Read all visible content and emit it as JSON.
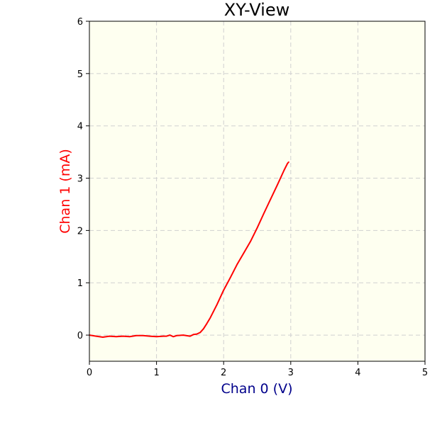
{
  "chart_data": {
    "type": "line",
    "title": "XY-View",
    "xlabel": "Chan 0 (V)",
    "ylabel": "Chan 1 (mA)",
    "xlim": [
      0,
      5
    ],
    "ylim": [
      -0.5,
      6
    ],
    "xticks": [
      "0",
      "1",
      "2",
      "3",
      "4",
      "5"
    ],
    "yticks": [
      "0",
      "1",
      "2",
      "3",
      "4",
      "5",
      "6"
    ],
    "grid": true,
    "legend": "none",
    "colors": {
      "background": "#fefff0",
      "line": "#ff0000",
      "xlabel": "#00008b",
      "ylabel": "#ff0000",
      "grid": "#d0d0d0"
    },
    "series": [
      {
        "x": [
          0.0,
          0.1,
          0.2,
          0.3,
          0.4,
          0.5,
          0.6,
          0.7,
          0.8,
          0.9,
          1.0,
          1.1,
          1.15,
          1.2,
          1.25,
          1.3,
          1.4,
          1.5,
          1.55,
          1.6,
          1.65,
          1.7,
          1.75,
          1.8,
          1.9,
          2.0,
          2.1,
          2.2,
          2.3,
          2.4,
          2.5,
          2.6,
          2.7,
          2.8,
          2.9,
          2.95,
          2.97
        ],
        "y": [
          0.0,
          -0.02,
          -0.04,
          -0.02,
          -0.03,
          -0.02,
          -0.03,
          -0.01,
          -0.01,
          -0.02,
          -0.03,
          -0.02,
          -0.02,
          0.0,
          -0.03,
          -0.01,
          0.0,
          -0.02,
          0.01,
          0.02,
          0.05,
          0.12,
          0.22,
          0.33,
          0.58,
          0.86,
          1.1,
          1.35,
          1.57,
          1.79,
          2.05,
          2.33,
          2.6,
          2.87,
          3.15,
          3.28,
          3.31
        ]
      }
    ]
  }
}
